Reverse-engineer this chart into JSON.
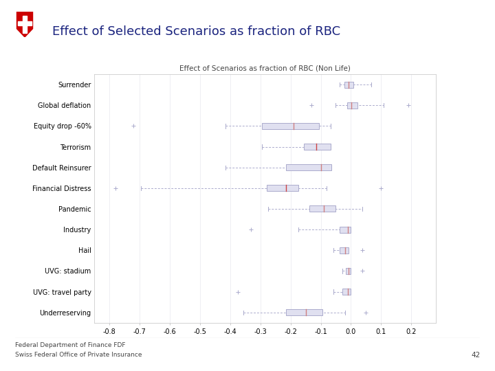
{
  "title_main": "Effect of Selected Scenarios as fraction of RBC",
  "chart_title": "Effect of Scenarios as fraction of RBC (Non Life)",
  "footer_line1": "Federal Department of Finance FDF",
  "footer_line2": "Swiss Federal Office of Private Insurance",
  "page_number": "42",
  "categories": [
    "Surrender",
    "Global deflation",
    "Equity drop -60%",
    "Terrorism",
    "Default Reinsurer",
    "Financial Distress",
    "Pandemic",
    "Industry",
    "Hail",
    "UVG: stadium",
    "UVG: travel party",
    "Underreserving"
  ],
  "box_data": [
    {
      "whisker_low": -0.038,
      "q1": -0.022,
      "median": -0.008,
      "q3": 0.008,
      "whisker_high": 0.068,
      "fliers": []
    },
    {
      "whisker_low": -0.052,
      "q1": -0.012,
      "median": 0.002,
      "q3": 0.022,
      "whisker_high": 0.108,
      "fliers": [
        -0.13,
        0.19
      ]
    },
    {
      "whisker_low": -0.415,
      "q1": -0.295,
      "median": -0.19,
      "q3": -0.105,
      "whisker_high": -0.068,
      "fliers": [
        -0.72
      ]
    },
    {
      "whisker_low": -0.295,
      "q1": -0.155,
      "median": -0.115,
      "q3": -0.068,
      "whisker_high": -0.068,
      "fliers": []
    },
    {
      "whisker_low": -0.415,
      "q1": -0.215,
      "median": -0.1,
      "q3": -0.065,
      "whisker_high": -0.065,
      "fliers": []
    },
    {
      "whisker_low": -0.695,
      "q1": -0.278,
      "median": -0.215,
      "q3": -0.175,
      "whisker_high": -0.08,
      "fliers": [
        -0.78,
        0.1
      ]
    },
    {
      "whisker_low": -0.275,
      "q1": -0.138,
      "median": -0.09,
      "q3": -0.052,
      "whisker_high": 0.038,
      "fliers": []
    },
    {
      "whisker_low": -0.175,
      "q1": -0.038,
      "median": -0.01,
      "q3": 0.0,
      "whisker_high": 0.0,
      "fliers": [
        -0.33
      ]
    },
    {
      "whisker_low": -0.058,
      "q1": -0.038,
      "median": -0.02,
      "q3": -0.008,
      "whisker_high": -0.008,
      "fliers": [
        0.038
      ]
    },
    {
      "whisker_low": -0.028,
      "q1": -0.018,
      "median": -0.008,
      "q3": 0.0,
      "whisker_high": 0.0,
      "fliers": [
        0.038
      ]
    },
    {
      "whisker_low": -0.058,
      "q1": -0.028,
      "median": -0.01,
      "q3": 0.0,
      "whisker_high": 0.0,
      "fliers": [
        -0.375
      ]
    },
    {
      "whisker_low": -0.355,
      "q1": -0.215,
      "median": -0.148,
      "q3": -0.095,
      "whisker_high": -0.02,
      "fliers": [
        0.048
      ]
    }
  ],
  "xlim": [
    -0.85,
    0.28
  ],
  "xticks": [
    -0.8,
    -0.7,
    -0.6,
    -0.5,
    -0.4,
    -0.3,
    -0.2,
    -0.1,
    0.0,
    0.1,
    0.2
  ],
  "box_facecolor": "#e0e0f0",
  "box_edgecolor": "#aaaacc",
  "median_color_default": "#d08080",
  "median_color_highlight": "#cc4444",
  "highlight_rows": [
    3,
    5
  ],
  "whisker_color": "#aaaacc",
  "flier_color": "#aaaacc",
  "grid_color": "#e8e8ee",
  "zero_line_color": "#cccccc",
  "bg_color": "#ffffff",
  "title_color": "#1a237e",
  "footer_color": "#444444",
  "label_fontsize": 7,
  "tick_fontsize": 7,
  "chart_title_fontsize": 7.5,
  "main_title_fontsize": 13
}
